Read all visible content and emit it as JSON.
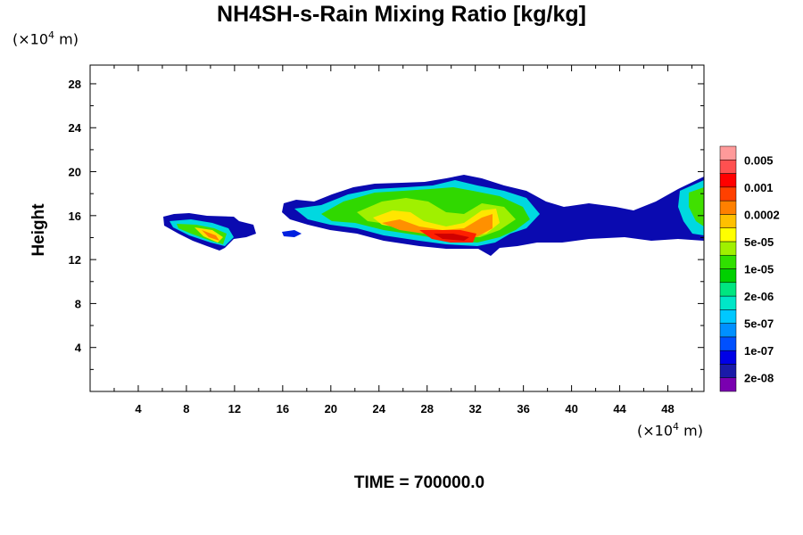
{
  "chart_data": {
    "type": "heatmap",
    "title": "NH4SH-s-Rain Mixing Ratio [kg/kg]",
    "ylabel": "Height",
    "xlabel": "",
    "x_unit": "(×10⁴ m)",
    "y_unit": "(×10⁴ m)",
    "x_unit_parts": {
      "pre": "(×10",
      "exp": "4",
      "post": " m)"
    },
    "y_unit_parts": {
      "pre": "(×10",
      "exp": "4",
      "post": " m)"
    },
    "xlim": [
      0,
      51
    ],
    "ylim": [
      0,
      29.7
    ],
    "x_ticks": [
      "4",
      "8",
      "12",
      "16",
      "20",
      "24",
      "28",
      "32",
      "36",
      "40",
      "44",
      "48"
    ],
    "x_tick_values": [
      4,
      8,
      12,
      16,
      20,
      24,
      28,
      32,
      36,
      40,
      44,
      48
    ],
    "y_ticks": [
      "4",
      "8",
      "12",
      "16",
      "20",
      "24",
      "28"
    ],
    "y_tick_values": [
      4,
      8,
      12,
      16,
      20,
      24,
      28
    ],
    "colorbar": {
      "colors": [
        "#7a00b0",
        "#1a1aa8",
        "#0000e6",
        "#0050ff",
        "#0090ff",
        "#00c8ff",
        "#00e6c8",
        "#00e680",
        "#00d000",
        "#30e000",
        "#a0f000",
        "#ffff00",
        "#ffc000",
        "#ff8000",
        "#ff4000",
        "#ff0000",
        "#ff5050",
        "#ff9a9a"
      ],
      "labels": [
        "2e-08",
        "1e-07",
        "5e-07",
        "2e-06",
        "1e-05",
        "5e-05",
        "0.0002",
        "0.001",
        "0.005"
      ]
    },
    "grid": false
  },
  "footer": {
    "time_label": "TIME = 700000.0"
  }
}
